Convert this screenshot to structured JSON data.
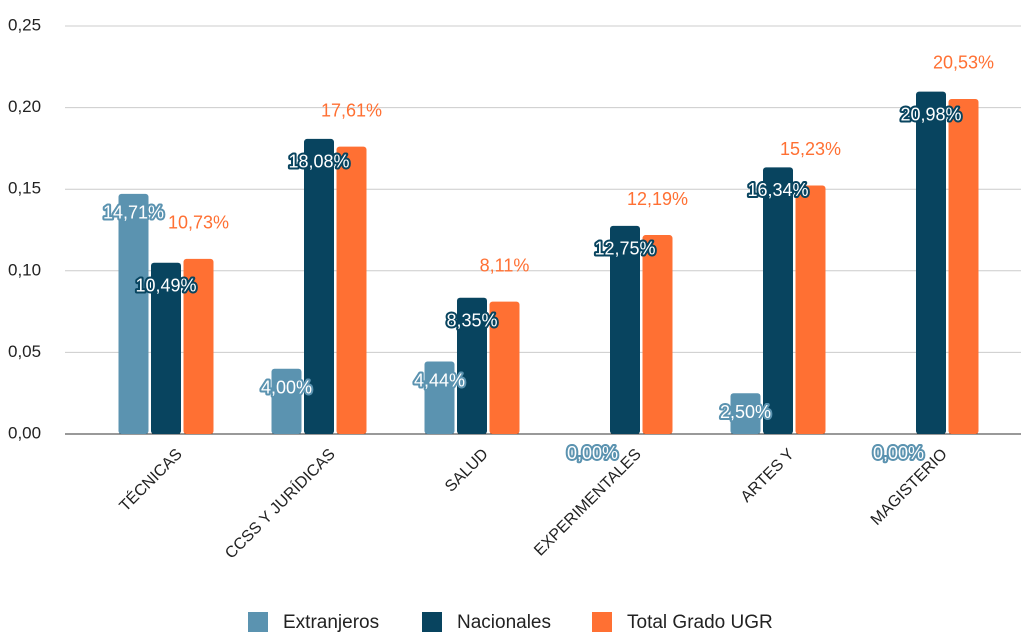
{
  "chart_data": {
    "type": "bar",
    "categories": [
      "TÉCNICAS",
      "CCSS Y JURÍDICAS",
      "SALUD",
      "EXPERIMENTALES",
      "ARTES Y",
      "MAGISTERIO"
    ],
    "series": [
      {
        "name": "Extranjeros",
        "color": "#5b93b0",
        "values": [
          0.1471,
          0.04,
          0.0444,
          0,
          0.025,
          0
        ],
        "value_labels": [
          "14,71%",
          "4,00%",
          "4,44%",
          "0,00%",
          "2,50%",
          "0,00%"
        ]
      },
      {
        "name": "Nacionales",
        "color": "#08445f",
        "values": [
          0.1049,
          0.1808,
          0.0835,
          0.1275,
          0.1634,
          0.2098
        ],
        "value_labels": [
          "10,49%",
          "18,08%",
          "8,35%",
          "12,75%",
          "16,34%",
          "20,98%"
        ]
      },
      {
        "name": "Total Grado UGR",
        "color": "#ff7033",
        "values": [
          0.1073,
          0.1761,
          0.0811,
          0.1219,
          0.1523,
          0.2053
        ],
        "value_labels": [
          "10,73%",
          "17,61%",
          "8,11%",
          "12,19%",
          "15,23%",
          "20,53%"
        ]
      }
    ],
    "ylim": [
      0,
      0.25
    ],
    "yticks": [
      {
        "value": 0,
        "label": "0,00"
      },
      {
        "value": 0.05,
        "label": "0,05"
      },
      {
        "value": 0.1,
        "label": "0,10"
      },
      {
        "value": 0.15,
        "label": "0,15"
      },
      {
        "value": 0.2,
        "label": "0,20"
      },
      {
        "value": 0.25,
        "label": "0,25"
      }
    ],
    "grid": true,
    "legend": "bottom"
  }
}
